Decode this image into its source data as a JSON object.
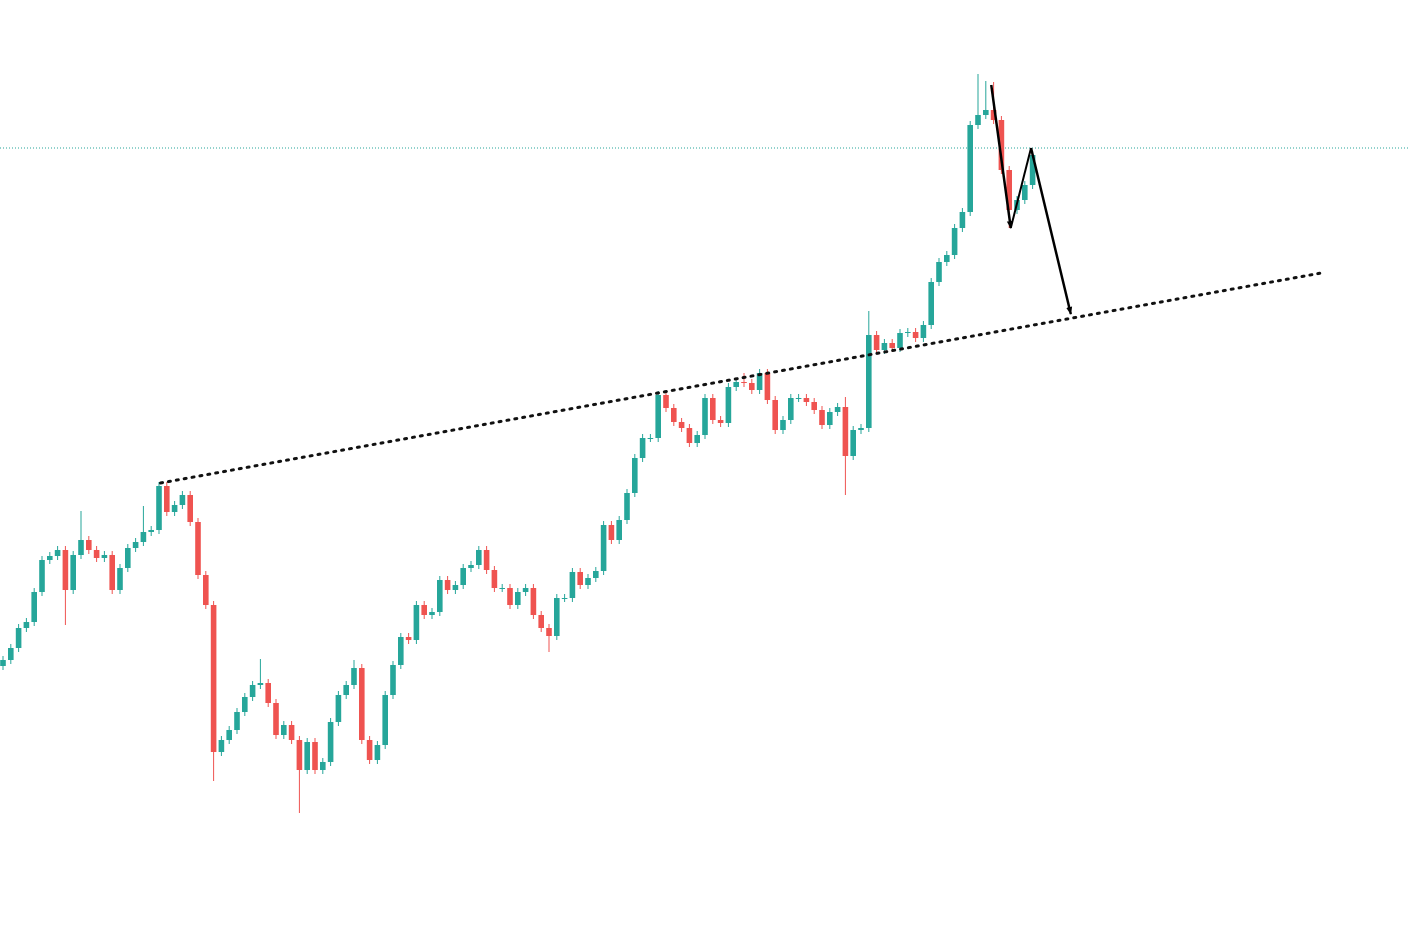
{
  "chart_data": {
    "type": "candlestick",
    "up_color": "#26a69a",
    "down_color": "#ef5350",
    "ylim": [
      0,
      951
    ],
    "open": [
      285,
      291,
      303,
      323,
      329,
      359,
      391,
      395,
      401,
      361,
      396,
      411,
      401,
      393,
      396,
      361,
      383,
      403,
      409,
      419,
      421,
      465,
      439,
      446,
      456,
      429,
      376,
      346,
      199,
      211,
      221,
      239,
      254,
      266,
      268,
      248,
      216,
      226,
      211,
      181,
      209,
      181,
      189,
      229,
      256,
      266,
      283,
      211,
      191,
      206,
      256,
      286,
      314,
      311,
      346,
      336,
      339,
      371,
      361,
      366,
      383,
      386,
      401,
      381,
      363,
      363,
      346,
      359,
      363,
      336,
      323,
      315,
      353,
      353,
      379,
      366,
      373,
      380,
      426,
      411,
      431,
      458,
      493,
      513,
      513,
      556,
      543,
      529,
      523,
      508,
      516,
      553,
      531,
      528,
      564,
      569,
      568,
      561,
      578,
      551,
      521,
      531,
      553,
      553,
      549,
      541,
      526,
      539,
      544,
      495,
      521,
      523,
      616,
      601,
      608,
      603,
      618,
      619,
      613,
      626,
      669,
      689,
      696,
      723,
      739,
      826,
      836,
      841,
      831,
      781,
      741,
      751,
      766
    ],
    "high": [
      295,
      307,
      327,
      333,
      363,
      395,
      399,
      405,
      405,
      400,
      440,
      415,
      405,
      400,
      400,
      387,
      407,
      413,
      445,
      425,
      469,
      469,
      450,
      460,
      460,
      433,
      380,
      350,
      215,
      225,
      243,
      258,
      270,
      292,
      272,
      252,
      230,
      230,
      215,
      213,
      213,
      193,
      233,
      260,
      270,
      291,
      287,
      215,
      210,
      260,
      290,
      318,
      318,
      350,
      350,
      343,
      375,
      375,
      370,
      387,
      390,
      405,
      405,
      385,
      367,
      367,
      363,
      367,
      367,
      340,
      327,
      357,
      357,
      383,
      383,
      377,
      384,
      430,
      430,
      435,
      462,
      497,
      517,
      517,
      560,
      560,
      547,
      533,
      527,
      520,
      557,
      557,
      535,
      568,
      573,
      578,
      572,
      582,
      582,
      555,
      535,
      557,
      557,
      557,
      553,
      545,
      543,
      548,
      554,
      525,
      527,
      640,
      620,
      612,
      612,
      622,
      623,
      623,
      630,
      673,
      693,
      700,
      727,
      743,
      830,
      877,
      870,
      869,
      835,
      785,
      755,
      770,
      800
    ],
    "low": [
      281,
      287,
      299,
      319,
      325,
      355,
      387,
      391,
      326,
      357,
      392,
      397,
      389,
      389,
      357,
      357,
      379,
      399,
      405,
      415,
      417,
      435,
      435,
      442,
      425,
      372,
      342,
      170,
      195,
      207,
      217,
      235,
      250,
      262,
      244,
      212,
      212,
      207,
      138,
      177,
      177,
      177,
      185,
      225,
      252,
      262,
      207,
      187,
      187,
      202,
      252,
      282,
      307,
      307,
      332,
      332,
      335,
      357,
      357,
      362,
      379,
      382,
      377,
      359,
      359,
      342,
      342,
      355,
      332,
      319,
      299,
      311,
      349,
      349,
      362,
      362,
      369,
      376,
      407,
      407,
      427,
      454,
      489,
      509,
      509,
      539,
      525,
      519,
      504,
      504,
      512,
      527,
      524,
      524,
      560,
      564,
      557,
      557,
      547,
      517,
      517,
      527,
      549,
      545,
      537,
      522,
      522,
      535,
      456,
      491,
      517,
      519,
      597,
      597,
      599,
      599,
      614,
      609,
      609,
      622,
      665,
      685,
      692,
      719,
      735,
      822,
      832,
      827,
      777,
      723,
      737,
      747,
      762
    ],
    "close": [
      291,
      303,
      323,
      329,
      359,
      391,
      395,
      401,
      361,
      396,
      411,
      401,
      393,
      396,
      361,
      383,
      403,
      409,
      419,
      421,
      465,
      439,
      446,
      456,
      429,
      376,
      346,
      199,
      211,
      221,
      239,
      254,
      266,
      268,
      248,
      216,
      226,
      211,
      181,
      209,
      181,
      189,
      229,
      256,
      266,
      283,
      211,
      191,
      206,
      256,
      286,
      314,
      311,
      346,
      336,
      339,
      371,
      361,
      366,
      383,
      386,
      401,
      381,
      363,
      363,
      346,
      359,
      363,
      336,
      323,
      315,
      353,
      353,
      379,
      366,
      373,
      380,
      426,
      411,
      431,
      458,
      493,
      513,
      513,
      556,
      543,
      529,
      523,
      508,
      516,
      553,
      531,
      528,
      564,
      569,
      568,
      561,
      578,
      551,
      521,
      531,
      553,
      553,
      549,
      541,
      526,
      539,
      544,
      495,
      521,
      523,
      616,
      601,
      608,
      603,
      618,
      619,
      613,
      626,
      669,
      689,
      696,
      723,
      739,
      826,
      836,
      841,
      831,
      781,
      741,
      751,
      766,
      796
    ],
    "price_line": {
      "value": 803,
      "color": "#26a69a"
    },
    "trend_line": {
      "x": [
        20.2,
        169
      ],
      "values": [
        468,
        678
      ]
    },
    "arrows": [
      {
        "x": [
          126.7,
          129.2
        ],
        "values": [
          866,
          723
        ]
      },
      {
        "x": [
          131.8,
          136.9
        ],
        "values": [
          803,
          637
        ]
      }
    ]
  }
}
